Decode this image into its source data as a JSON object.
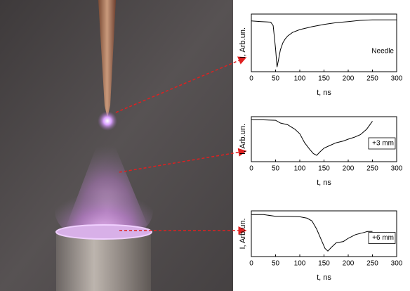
{
  "chart_data": [
    {
      "type": "line",
      "x": [
        0,
        20,
        40,
        45,
        50,
        53,
        56,
        60,
        65,
        70,
        75,
        85,
        100,
        125,
        150,
        175,
        200,
        225,
        250,
        252,
        300
      ],
      "values": [
        0.88,
        0.87,
        0.86,
        0.8,
        0.4,
        0.08,
        0.2,
        0.38,
        0.5,
        0.57,
        0.62,
        0.68,
        0.73,
        0.78,
        0.82,
        0.85,
        0.87,
        0.89,
        0.9,
        0.9,
        0.9
      ],
      "color": "#000000",
      "xlim": [
        0,
        300
      ],
      "xticks": [
        0,
        50,
        100,
        150,
        200,
        250,
        300
      ],
      "ylim": [
        0,
        1
      ],
      "xlabel": "t, ns",
      "ylabel": "I, Arb.un.",
      "annotation": "Needle"
    },
    {
      "type": "line",
      "x": [
        0,
        25,
        50,
        60,
        75,
        90,
        100,
        110,
        120,
        128,
        135,
        142,
        150,
        162,
        175,
        190,
        200,
        212,
        225,
        238,
        250
      ],
      "values": [
        0.93,
        0.93,
        0.92,
        0.86,
        0.82,
        0.72,
        0.62,
        0.42,
        0.28,
        0.18,
        0.14,
        0.22,
        0.3,
        0.36,
        0.42,
        0.46,
        0.5,
        0.54,
        0.6,
        0.72,
        0.9
      ],
      "color": "#000000",
      "xlim": [
        0,
        300
      ],
      "xticks": [
        0,
        50,
        100,
        150,
        200,
        250,
        300
      ],
      "ylim": [
        0,
        1
      ],
      "xlabel": "t, ns",
      "ylabel": "I, Arb.un.",
      "annotation": "+3 mm"
    },
    {
      "type": "line",
      "x": [
        0,
        25,
        50,
        75,
        100,
        115,
        125,
        135,
        145,
        152,
        158,
        165,
        175,
        190,
        200,
        215,
        230,
        240,
        250
      ],
      "values": [
        0.92,
        0.92,
        0.88,
        0.88,
        0.87,
        0.84,
        0.78,
        0.6,
        0.35,
        0.18,
        0.12,
        0.2,
        0.3,
        0.33,
        0.4,
        0.48,
        0.52,
        0.55,
        0.55
      ],
      "color": "#000000",
      "xlim": [
        0,
        300
      ],
      "xticks": [
        0,
        50,
        100,
        150,
        200,
        250,
        300
      ],
      "ylim": [
        0,
        1
      ],
      "xlabel": "t, ns",
      "ylabel": "I, Arb.un.",
      "annotation": "+6 mm"
    }
  ]
}
